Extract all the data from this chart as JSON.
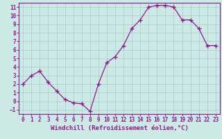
{
  "x": [
    0,
    1,
    2,
    3,
    4,
    5,
    6,
    7,
    8,
    9,
    10,
    11,
    12,
    13,
    14,
    15,
    16,
    17,
    18,
    19,
    20,
    21,
    22,
    23
  ],
  "y": [
    2,
    3,
    3.5,
    2.2,
    1.2,
    0.2,
    -0.2,
    -0.3,
    -1.2,
    2,
    4.5,
    5.2,
    6.5,
    8.5,
    9.5,
    11,
    11.2,
    11.2,
    11,
    9.5,
    9.5,
    8.5,
    6.5,
    6.5
  ],
  "line_color": "#8b1a8b",
  "marker": "+",
  "markersize": 4,
  "linewidth": 0.9,
  "markeredgewidth": 1.0,
  "xlabel": "Windchill (Refroidissement éolien,°C)",
  "xlabel_fontsize": 6.5,
  "bg_color": "#cce9e6",
  "grid_color": "#aacccc",
  "spine_color": "#8b1a8b",
  "tick_color": "#8b1a8b",
  "tick_fontsize": 5.5,
  "xlim": [
    -0.5,
    23.5
  ],
  "ylim": [
    -1.5,
    11.5
  ],
  "yticks": [
    -1,
    0,
    1,
    2,
    3,
    4,
    5,
    6,
    7,
    8,
    9,
    10,
    11
  ],
  "xticks": [
    0,
    1,
    2,
    3,
    4,
    5,
    6,
    7,
    8,
    9,
    10,
    11,
    12,
    13,
    14,
    15,
    16,
    17,
    18,
    19,
    20,
    21,
    22,
    23
  ]
}
